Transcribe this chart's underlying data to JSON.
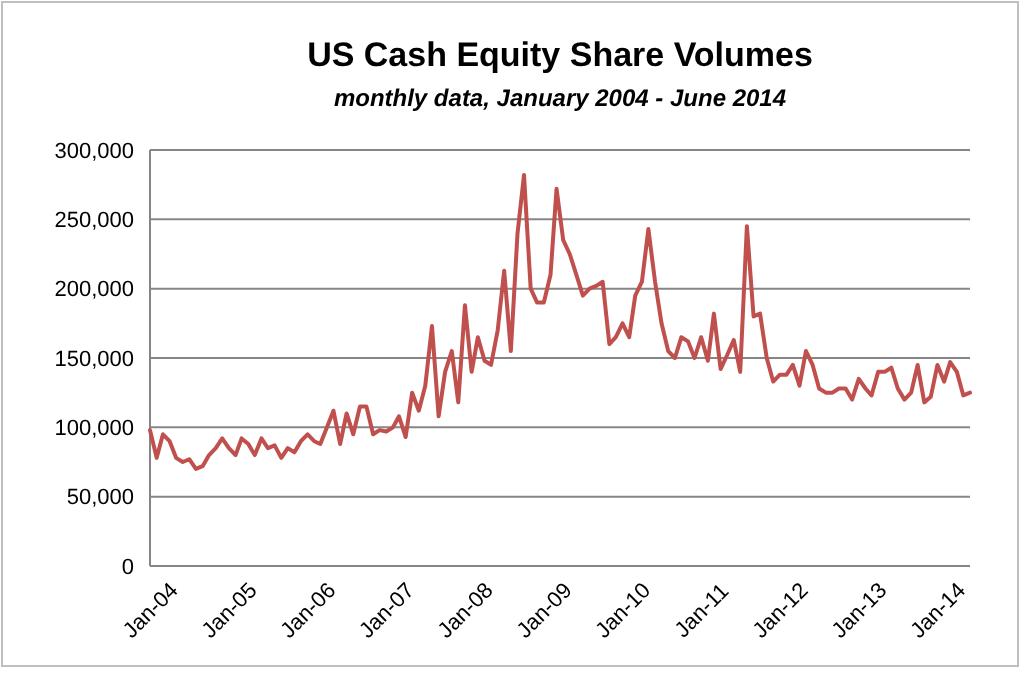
{
  "chart_data": {
    "type": "line",
    "title": "US Cash Equity Share Volumes",
    "subtitle": "monthly data, January 2004 - June 2014",
    "x": [
      "2004-01",
      "2004-02",
      "2004-03",
      "2004-04",
      "2004-05",
      "2004-06",
      "2004-07",
      "2004-08",
      "2004-09",
      "2004-10",
      "2004-11",
      "2004-12",
      "2005-01",
      "2005-02",
      "2005-03",
      "2005-04",
      "2005-05",
      "2005-06",
      "2005-07",
      "2005-08",
      "2005-09",
      "2005-10",
      "2005-11",
      "2005-12",
      "2006-01",
      "2006-02",
      "2006-03",
      "2006-04",
      "2006-05",
      "2006-06",
      "2006-07",
      "2006-08",
      "2006-09",
      "2006-10",
      "2006-11",
      "2006-12",
      "2007-01",
      "2007-02",
      "2007-03",
      "2007-04",
      "2007-05",
      "2007-06",
      "2007-07",
      "2007-08",
      "2007-09",
      "2007-10",
      "2007-11",
      "2007-12",
      "2008-01",
      "2008-02",
      "2008-03",
      "2008-04",
      "2008-05",
      "2008-06",
      "2008-07",
      "2008-08",
      "2008-09",
      "2008-10",
      "2008-11",
      "2008-12",
      "2009-01",
      "2009-02",
      "2009-03",
      "2009-04",
      "2009-05",
      "2009-06",
      "2009-07",
      "2009-08",
      "2009-09",
      "2009-10",
      "2009-11",
      "2009-12",
      "2010-01",
      "2010-02",
      "2010-03",
      "2010-04",
      "2010-05",
      "2010-06",
      "2010-07",
      "2010-08",
      "2010-09",
      "2010-10",
      "2010-11",
      "2010-12",
      "2011-01",
      "2011-02",
      "2011-03",
      "2011-04",
      "2011-05",
      "2011-06",
      "2011-07",
      "2011-08",
      "2011-09",
      "2011-10",
      "2011-11",
      "2011-12",
      "2012-01",
      "2012-02",
      "2012-03",
      "2012-04",
      "2012-05",
      "2012-06",
      "2012-07",
      "2012-08",
      "2012-09",
      "2012-10",
      "2012-11",
      "2012-12",
      "2013-01",
      "2013-02",
      "2013-03",
      "2013-04",
      "2013-05",
      "2013-06",
      "2013-07",
      "2013-08",
      "2013-09",
      "2013-10",
      "2013-11",
      "2013-12",
      "2014-01",
      "2014-02",
      "2014-03",
      "2014-04",
      "2014-05",
      "2014-06"
    ],
    "series": [
      {
        "color": "#c0504d",
        "values": [
          98000,
          78000,
          95000,
          90000,
          78000,
          75000,
          77000,
          70000,
          72000,
          80000,
          85000,
          92000,
          85000,
          80000,
          92000,
          88000,
          80000,
          92000,
          85000,
          87000,
          78000,
          85000,
          82000,
          90000,
          95000,
          90000,
          88000,
          100000,
          112000,
          88000,
          110000,
          95000,
          115000,
          115000,
          95000,
          98000,
          97000,
          100000,
          108000,
          93000,
          125000,
          112000,
          130000,
          173000,
          108000,
          140000,
          155000,
          118000,
          188000,
          140000,
          165000,
          148000,
          145000,
          170000,
          213000,
          155000,
          240000,
          282000,
          200000,
          190000,
          190000,
          210000,
          272000,
          235000,
          225000,
          210000,
          195000,
          200000,
          202000,
          205000,
          160000,
          165000,
          175000,
          165000,
          195000,
          205000,
          243000,
          205000,
          175000,
          155000,
          150000,
          165000,
          162000,
          150000,
          165000,
          148000,
          182000,
          142000,
          152000,
          163000,
          140000,
          245000,
          180000,
          182000,
          150000,
          133000,
          138000,
          138000,
          145000,
          130000,
          155000,
          145000,
          128000,
          125000,
          125000,
          128000,
          128000,
          120000,
          135000,
          128000,
          123000,
          140000,
          140000,
          143000,
          128000,
          120000,
          125000,
          145000,
          118000,
          122000,
          145000,
          133000,
          147000,
          140000,
          123000,
          125000
        ]
      }
    ],
    "xlim": [
      "2004-01",
      "2014-06"
    ],
    "xticks": [
      {
        "value": "2004-01",
        "label": "Jan-04"
      },
      {
        "value": "2005-01",
        "label": "Jan-05"
      },
      {
        "value": "2006-01",
        "label": "Jan-06"
      },
      {
        "value": "2007-01",
        "label": "Jan-07"
      },
      {
        "value": "2008-01",
        "label": "Jan-08"
      },
      {
        "value": "2009-01",
        "label": "Jan-09"
      },
      {
        "value": "2010-01",
        "label": "Jan-10"
      },
      {
        "value": "2011-01",
        "label": "Jan-11"
      },
      {
        "value": "2012-01",
        "label": "Jan-12"
      },
      {
        "value": "2013-01",
        "label": "Jan-13"
      },
      {
        "value": "2014-01",
        "label": "Jan-14"
      }
    ],
    "ylim": [
      0,
      300000
    ],
    "yticks": [
      0,
      {
        "value": 50000,
        "label": "50,000"
      },
      {
        "value": 100000,
        "label": "100,000"
      },
      {
        "value": 150000,
        "label": "150,000"
      },
      {
        "value": 200000,
        "label": "200,000"
      },
      {
        "value": 250000,
        "label": "250,000"
      },
      {
        "value": 300000,
        "label": "300,000"
      }
    ],
    "grid": "y",
    "marker": "none",
    "line_style": "solid"
  }
}
